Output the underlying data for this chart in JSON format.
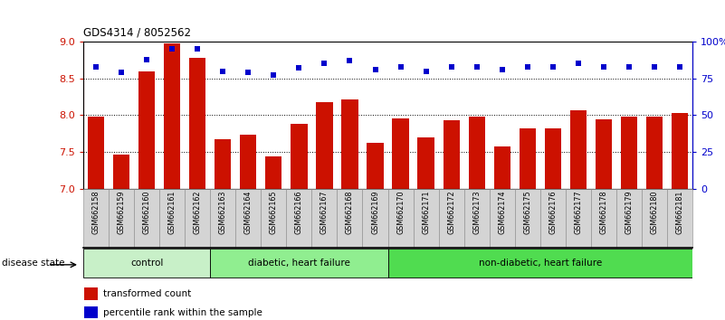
{
  "title": "GDS4314 / 8052562",
  "samples": [
    "GSM662158",
    "GSM662159",
    "GSM662160",
    "GSM662161",
    "GSM662162",
    "GSM662163",
    "GSM662164",
    "GSM662165",
    "GSM662166",
    "GSM662167",
    "GSM662168",
    "GSM662169",
    "GSM662170",
    "GSM662171",
    "GSM662172",
    "GSM662173",
    "GSM662174",
    "GSM662175",
    "GSM662176",
    "GSM662177",
    "GSM662178",
    "GSM662179",
    "GSM662180",
    "GSM662181"
  ],
  "bar_values": [
    7.98,
    7.47,
    8.6,
    8.97,
    8.78,
    7.67,
    7.73,
    7.44,
    7.88,
    8.18,
    8.22,
    7.62,
    7.96,
    7.7,
    7.93,
    7.98,
    7.57,
    7.82,
    7.82,
    8.07,
    7.95,
    7.98,
    7.98,
    8.03
  ],
  "percentile_values": [
    83,
    79,
    88,
    95,
    95,
    80,
    79,
    77,
    82,
    85,
    87,
    81,
    83,
    80,
    83,
    83,
    81,
    83,
    83,
    85,
    83,
    83,
    83,
    83
  ],
  "bar_color": "#cc1100",
  "dot_color": "#0000cc",
  "ylim_left": [
    7.0,
    9.0
  ],
  "ylim_right": [
    0,
    100
  ],
  "yticks_left": [
    7.0,
    7.5,
    8.0,
    8.5,
    9.0
  ],
  "yticks_right": [
    0,
    25,
    50,
    75,
    100
  ],
  "ytick_labels_right": [
    "0",
    "25",
    "50",
    "75",
    "100%"
  ],
  "grid_lines": [
    7.5,
    8.0,
    8.5
  ],
  "groups": [
    {
      "label": "control",
      "start": 0,
      "end": 5,
      "color": "#c8f0c8"
    },
    {
      "label": "diabetic, heart failure",
      "start": 5,
      "end": 12,
      "color": "#90ee90"
    },
    {
      "label": "non-diabetic, heart failure",
      "start": 12,
      "end": 24,
      "color": "#50dc50"
    }
  ],
  "legend_bar_label": "transformed count",
  "legend_dot_label": "percentile rank within the sample",
  "disease_state_label": "disease state",
  "bg_color": "#ffffff",
  "bar_color_left": "#cc1100",
  "dot_color_right": "#0000cc"
}
